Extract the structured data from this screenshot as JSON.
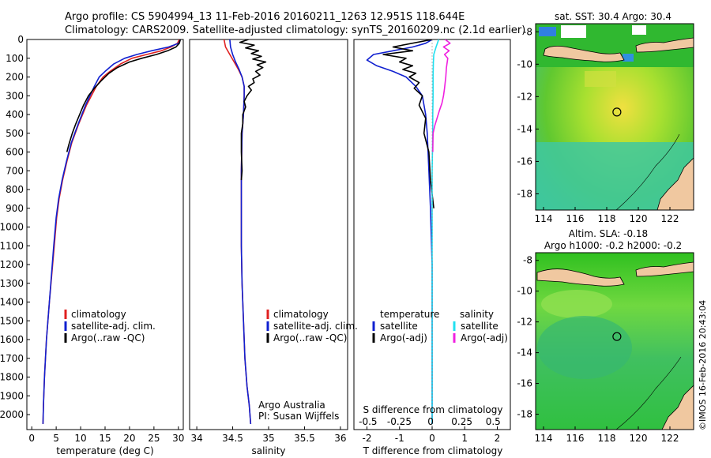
{
  "header": {
    "line1": "Argo profile: CS 5904994_13 11-Feb-2016 20160211_1263 12.951S 118.644E",
    "line2": "Climatology: CARS2009. Satellite-adjusted climatology: synTS_20160209.nc (2.1d earlier)"
  },
  "colors": {
    "climatology": "#e02020",
    "satellite": "#1020d0",
    "argo": "#000000",
    "cyan": "#20e0f0",
    "magenta": "#f020e0",
    "land": "#f0c8a0",
    "sea_green": "#40c040"
  },
  "chart_data": [
    {
      "type": "line",
      "name": "temperature-profile",
      "xlabel": "temperature (deg C)",
      "ylabel": "",
      "xlim": [
        -1,
        31
      ],
      "ylim": [
        2080,
        0
      ],
      "xticks": [
        0,
        5,
        10,
        15,
        20,
        25,
        30
      ],
      "yticks": [
        0,
        100,
        200,
        300,
        400,
        500,
        600,
        700,
        800,
        900,
        1000,
        1100,
        1200,
        1300,
        1400,
        1500,
        1600,
        1700,
        1800,
        1900,
        2000
      ],
      "legend": [
        "climatology",
        "satellite-adj. clim.",
        "Argo(..raw -QC)"
      ],
      "legend_placement": "lower-center",
      "series": [
        {
          "name": "climatology",
          "color": "#e02020",
          "x": [
            30.2,
            29.8,
            28.5,
            26.5,
            23.5,
            20.5,
            18.2,
            16.0,
            14.6,
            13.2,
            11.2,
            9.6,
            8.2,
            7.2,
            6.3,
            5.6,
            5.1,
            4.6,
            3.6,
            3.0,
            2.6,
            2.4,
            2.3
          ],
          "y": [
            0,
            20,
            40,
            60,
            80,
            100,
            130,
            170,
            200,
            250,
            350,
            450,
            550,
            650,
            750,
            850,
            950,
            1100,
            1400,
            1600,
            1800,
            1950,
            2050
          ]
        },
        {
          "name": "satellite-adj. clim.",
          "color": "#1020d0",
          "x": [
            30.4,
            30.1,
            28.0,
            24.5,
            21.5,
            19.0,
            16.8,
            15.0,
            13.8,
            12.8,
            11.0,
            9.5,
            8.1,
            7.1,
            6.2,
            5.5,
            5.0,
            4.5,
            3.6,
            3.0,
            2.6,
            2.4,
            2.3
          ],
          "y": [
            0,
            20,
            40,
            60,
            80,
            100,
            130,
            170,
            200,
            250,
            350,
            450,
            550,
            650,
            750,
            850,
            950,
            1100,
            1400,
            1600,
            1800,
            1950,
            2050
          ]
        },
        {
          "name": "Argo(..raw -QC)",
          "color": "#000000",
          "x": [
            30.4,
            30.2,
            29.5,
            27.8,
            25.5,
            22.5,
            20.0,
            17.5,
            15.8,
            14.2,
            12.8,
            11.6,
            10.6,
            9.8,
            9.0,
            8.3,
            7.6,
            7.2
          ],
          "y": [
            0,
            20,
            40,
            60,
            80,
            100,
            120,
            150,
            180,
            220,
            260,
            300,
            350,
            400,
            450,
            500,
            560,
            600
          ]
        }
      ]
    },
    {
      "type": "line",
      "name": "salinity-profile",
      "xlabel": "salinity",
      "xlim": [
        33.9,
        36.1
      ],
      "ylim": [
        2080,
        0
      ],
      "xticks": [
        34,
        34.5,
        35,
        35.5,
        36
      ],
      "legend": [
        "climatology",
        "satellite-adj. clim.",
        "Argo(..raw -QC)"
      ],
      "legend_placement": "lower-right",
      "annotation": [
        "Argo Australia",
        "PI: Susan Wijffels"
      ],
      "series": [
        {
          "name": "climatology",
          "color": "#e02020",
          "x": [
            34.38,
            34.4,
            34.46,
            34.52,
            34.58,
            34.63,
            34.66,
            34.66,
            34.65,
            34.63,
            34.62,
            34.62,
            34.62,
            34.63,
            34.65,
            34.67,
            34.7,
            34.73,
            34.75
          ],
          "y": [
            0,
            40,
            80,
            120,
            160,
            200,
            250,
            300,
            400,
            500,
            700,
            900,
            1100,
            1300,
            1500,
            1700,
            1850,
            1950,
            2050
          ]
        },
        {
          "name": "satellite-adj. clim.",
          "color": "#1020d0",
          "x": [
            34.46,
            34.47,
            34.5,
            34.54,
            34.59,
            34.63,
            34.66,
            34.66,
            34.65,
            34.63,
            34.62,
            34.62,
            34.62,
            34.63,
            34.65,
            34.67,
            34.7,
            34.73,
            34.75
          ],
          "y": [
            0,
            40,
            80,
            120,
            160,
            200,
            250,
            300,
            400,
            500,
            700,
            900,
            1100,
            1300,
            1500,
            1700,
            1850,
            1950,
            2050
          ]
        },
        {
          "name": "Argo(..raw -QC)",
          "color": "#000000",
          "x": [
            34.72,
            34.6,
            34.8,
            34.68,
            34.86,
            34.76,
            34.9,
            34.78,
            34.96,
            34.84,
            34.92,
            34.82,
            34.88,
            34.78,
            34.8,
            34.72,
            34.76,
            34.7,
            34.66,
            34.68,
            34.64,
            34.64,
            34.62,
            34.62,
            34.63,
            34.62
          ],
          "y": [
            0,
            15,
            30,
            45,
            60,
            75,
            90,
            105,
            120,
            135,
            150,
            170,
            190,
            210,
            230,
            250,
            270,
            300,
            330,
            360,
            400,
            450,
            500,
            600,
            700,
            750
          ]
        }
      ]
    },
    {
      "type": "line",
      "name": "difference-profile",
      "xlabel": "T difference from climatology",
      "x2label": "S difference from climatology",
      "xlim": [
        -2.4,
        2.4
      ],
      "ylim": [
        2080,
        0
      ],
      "xticks": [
        -2,
        -1,
        0,
        1,
        2
      ],
      "x2ticks": [
        "-0.5",
        "-0.25",
        "0",
        "0.25",
        "0.5"
      ],
      "legend": {
        "temperature_heading": "temperature",
        "salinity_heading": "salinity",
        "entries": [
          "satellite",
          "Argo(-adj)",
          "satellite",
          "Argo(-adj)"
        ]
      },
      "series": [
        {
          "name": "T satellite",
          "color": "#1020d0",
          "x": [
            0,
            -0.2,
            -0.6,
            -1.2,
            -1.8,
            -2.0,
            -1.7,
            -1.2,
            -0.8,
            -0.5,
            -0.3,
            -0.2,
            -0.15,
            -0.1,
            -0.05,
            0,
            0
          ],
          "y": [
            0,
            20,
            40,
            60,
            80,
            110,
            140,
            170,
            200,
            250,
            300,
            400,
            500,
            700,
            900,
            1200,
            2050
          ]
        },
        {
          "name": "T Argo(-adj)",
          "color": "#000000",
          "x": [
            0,
            -1.2,
            -0.6,
            -1.5,
            -0.8,
            -1.0,
            -0.6,
            -0.9,
            -0.5,
            -0.7,
            -0.4,
            -0.55,
            -0.3,
            -0.4,
            -0.2,
            -0.25,
            -0.1,
            -0.05,
            0.05
          ],
          "y": [
            0,
            40,
            60,
            80,
            100,
            120,
            140,
            160,
            180,
            200,
            230,
            260,
            300,
            350,
            420,
            500,
            600,
            750,
            900
          ]
        },
        {
          "name": "S satellite",
          "color": "#20e0f0",
          "x": [
            0.2,
            0.12,
            0.05,
            0.04,
            0.03,
            0.03,
            0.02,
            0.02,
            0.01,
            0,
            0
          ],
          "y": [
            0,
            40,
            80,
            120,
            200,
            300,
            400,
            500,
            600,
            700,
            2050
          ]
        },
        {
          "name": "S Argo(-adj)",
          "color": "#f020e0",
          "x": [
            0.4,
            0.55,
            0.35,
            0.52,
            0.38,
            0.48,
            0.44,
            0.42,
            0.4,
            0.38,
            0.35,
            0.3,
            0.22,
            0.15,
            0.08,
            0.03,
            0.02
          ],
          "y": [
            0,
            20,
            40,
            60,
            80,
            100,
            150,
            200,
            230,
            260,
            300,
            340,
            380,
            420,
            460,
            500,
            600
          ]
        }
      ]
    },
    {
      "type": "heatmap",
      "name": "sst-map",
      "title": "sat. SST: 30.4 Argo: 30.4",
      "xlim": [
        113.5,
        123.5
      ],
      "ylim": [
        -19,
        -7.5
      ],
      "xticks": [
        114,
        116,
        118,
        120,
        122
      ],
      "yticks": [
        -8,
        -10,
        -12,
        -14,
        -16,
        -18
      ],
      "marker": {
        "lon": 118.644,
        "lat": -12.951
      }
    },
    {
      "type": "heatmap",
      "name": "sla-map",
      "title": "Altim. SLA: -0.18",
      "subtitle": "Argo h1000: -0.2 h2000: -0.2",
      "xlim": [
        113.5,
        123.5
      ],
      "ylim": [
        -19,
        -7.5
      ],
      "xticks": [
        114,
        116,
        118,
        120,
        122
      ],
      "yticks": [
        -8,
        -10,
        -12,
        -14,
        -16,
        -18
      ],
      "marker": {
        "lon": 118.644,
        "lat": -12.951
      }
    }
  ],
  "footer": {
    "credit": "©IMOS 16-Feb-2016 20:43:04"
  }
}
